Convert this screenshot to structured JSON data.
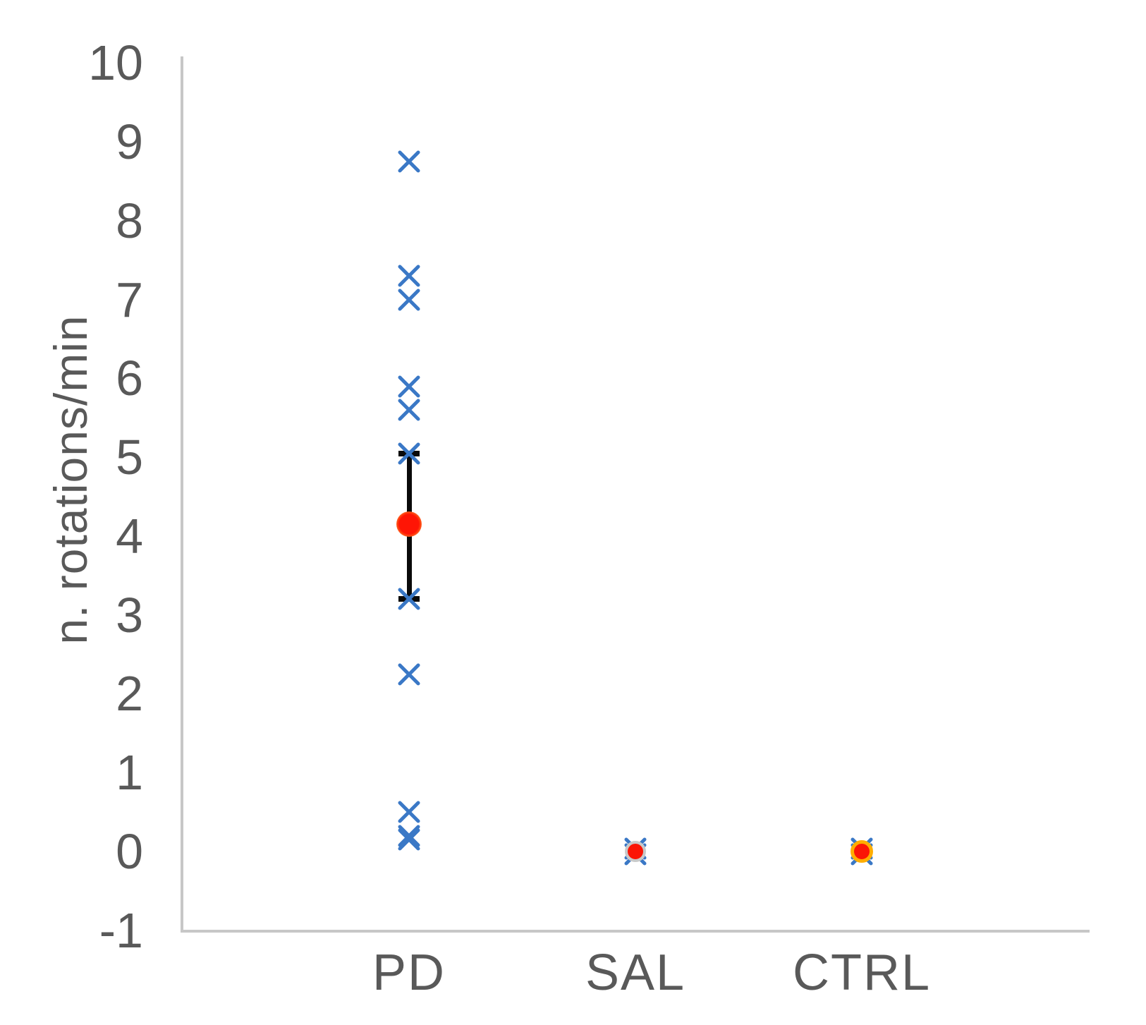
{
  "chart_data": {
    "type": "scatter",
    "title": "",
    "xlabel": "",
    "ylabel": "n. rotations/min",
    "ylim": [
      -1,
      10
    ],
    "grid": false,
    "legend": null,
    "yticks": [
      "10",
      "9",
      "8",
      "7",
      "6",
      "5",
      "4",
      "3",
      "2",
      "1",
      "0",
      "-1"
    ],
    "categories": [
      "PD",
      "SAL",
      "CTRL"
    ],
    "groups": [
      {
        "label": "PD",
        "points": [
          8.75,
          7.3,
          7.0,
          5.9,
          5.6,
          5.05,
          3.2,
          2.25,
          0.5,
          0.2,
          0.15
        ],
        "mean": 4.15,
        "error_low": 3.2,
        "error_high": 5.05,
        "mean_style": "glow"
      },
      {
        "label": "SAL",
        "points": [
          0.04,
          -0.04
        ],
        "mean": 0,
        "error_low": null,
        "error_high": null,
        "mean_style": "gray"
      },
      {
        "label": "CTRL",
        "points": [
          0.04,
          -0.04
        ],
        "mean": 0,
        "error_low": null,
        "error_high": null,
        "mean_style": "orange"
      }
    ],
    "colors": {
      "point_marker": "#3A78C6",
      "mean_dot": "#FB1506",
      "pd_glow": "#FF6A1E",
      "sal_ring": "#C9C9C9",
      "ctrl_ring": "#FFAD00",
      "error_bar": "#0A0A0A",
      "axis_line": "#C7C7C7",
      "label_text": "#595959"
    }
  }
}
